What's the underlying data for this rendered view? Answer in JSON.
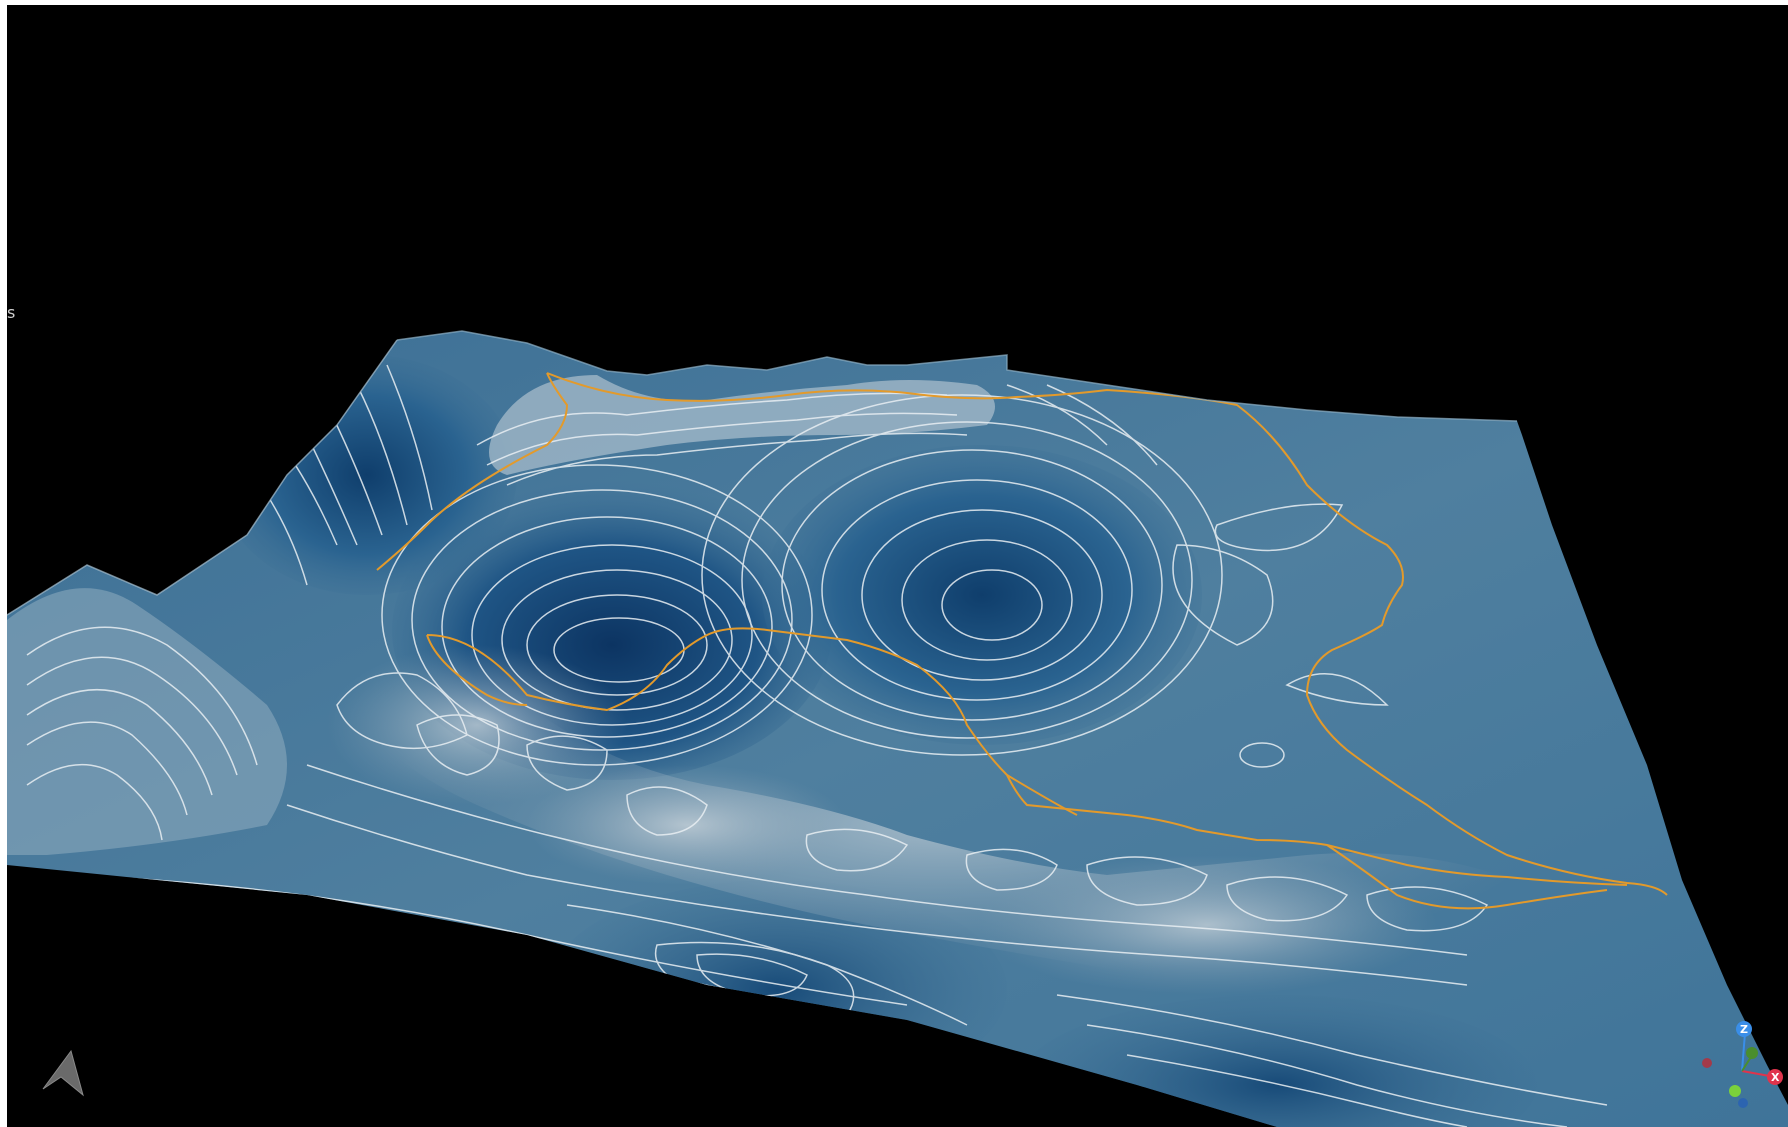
{
  "viewer": {
    "stray_glyph": "s"
  },
  "colors": {
    "background": "#000000",
    "surface_light": "#5a8aa8",
    "surface_dark": "#0f3c6a",
    "surface_pale": "#b8c6cf",
    "contour": "#e8eef2",
    "border": "#e39a2b",
    "axis_x": "#e0344c",
    "axis_y": "#7bd13b",
    "axis_z": "#3a8ee8"
  },
  "navigation": {
    "compass_icon": "north-arrow-icon"
  },
  "axis_gizmo": {
    "x_label": "X",
    "z_label": "Z"
  }
}
